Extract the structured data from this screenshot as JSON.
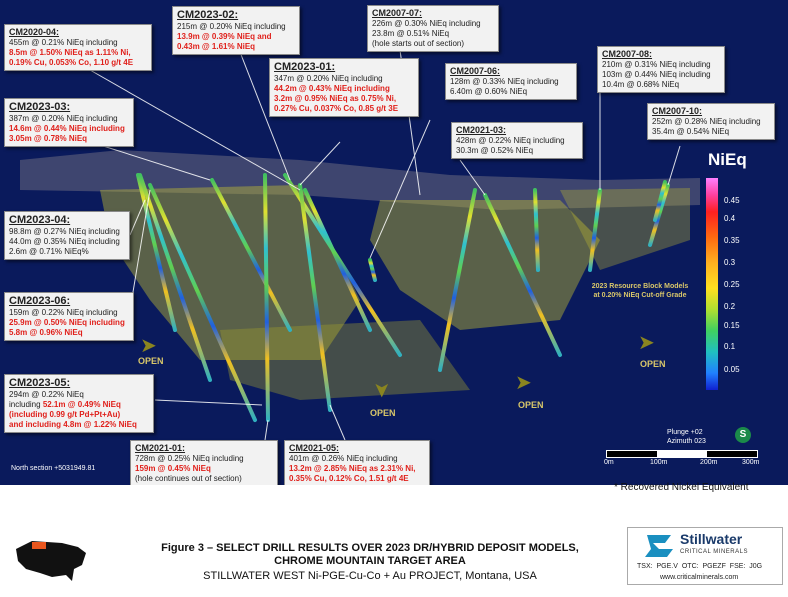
{
  "callouts": {
    "cm2020_04": {
      "title": "CM2020-04:",
      "lines": [
        "455m @ 0.21% NiEq including"
      ],
      "red": [
        "8.5m @ 1.50% NiEq as 1.11% Ni,",
        "0.19% Cu, 0.053% Co, 1.10 g/t 4E"
      ]
    },
    "cm2023_02": {
      "title": "CM2023-02:",
      "lines": [
        "215m @ 0.20% NiEq including"
      ],
      "red": [
        "13.9m @ 0.39% NiEq and",
        "0.43m @ 1.61% NiEq"
      ]
    },
    "cm2007_07": {
      "title": "CM2007-07:",
      "lines": [
        "226m @ 0.30% NiEq including",
        "23.8m @ 0.51% NiEq",
        "(hole starts out of section)"
      ]
    },
    "cm2023_01": {
      "title": "CM2023-01:",
      "lines": [
        "347m @ 0.20% NiEq including"
      ],
      "red": [
        "44.2m @ 0.43% NiEq including",
        "3.2m @ 0.95% NiEq as 0.75% Ni,",
        "0.27% Cu, 0.037% Co, 0.85 g/t 3E"
      ]
    },
    "cm2007_08": {
      "title": "CM2007-08:",
      "lines": [
        "210m @ 0.31% NiEq including",
        "103m @ 0.44% NiEq including",
        "10.4m @ 0.68% NiEq"
      ]
    },
    "cm2023_03": {
      "title": "CM2023-03:",
      "lines": [
        "387m @ 0.20% NiEq including"
      ],
      "red": [
        "14.6m @ 0.44% NiEq including",
        "3.05m @ 0.78% NiEq"
      ]
    },
    "cm2007_06": {
      "title": "CM2007-06:",
      "lines": [
        "128m @ 0.33% NiEq including",
        "6.40m @ 0.60% NiEq"
      ]
    },
    "cm2007_10": {
      "title": "CM2007-10:",
      "lines": [
        "252m @ 0.28% NiEq including",
        "35.4m @ 0.54% NiEq"
      ]
    },
    "cm2021_03": {
      "title": "CM2021-03:",
      "lines": [
        "428m @ 0.22% NiEq including",
        "30.3m @ 0.52% NiEq"
      ]
    },
    "cm2023_04": {
      "title": "CM2023-04:",
      "lines": [
        "98.8m @ 0.27% NiEq including",
        "44.0m @ 0.35% NiEq including",
        "2.6m @ 0.71% NiEq%"
      ]
    },
    "cm2023_06": {
      "title": "CM2023-06:",
      "lines": [
        "159m @ 0.22% NiEq including"
      ],
      "red": [
        "25.9m @ 0.50% NiEq including",
        "5.8m @ 0.96% NiEq"
      ]
    },
    "cm2023_05": {
      "title": "CM2023-05:",
      "lines": [
        "294m @ 0.22% NiEq"
      ],
      "mixed": "including ",
      "mixed_red": "52.1m @ 0.49% NiEq",
      "red": [
        "(including 0.99 g/t Pd+Pt+Au)",
        "and including 4.8m @ 1.22% NiEq"
      ]
    },
    "cm2021_01": {
      "title": "CM2021-01:",
      "lines": [
        "728m @ 0.25% NiEq including"
      ],
      "red": [
        "159m @ 0.45% NiEq"
      ],
      "tail": "(hole continues out of section)"
    },
    "cm2021_05": {
      "title": "CM2021-05:",
      "lines": [
        "401m @ 0.26% NiEq including"
      ],
      "red": [
        "13.2m @ 2.85% NiEq as 2.31% Ni,",
        "0.35% Cu, 0.12% Co, 1.51 g/t 4E"
      ]
    }
  },
  "legend": {
    "title": "NiEq",
    "labels": [
      "0.45",
      "0.4",
      "0.35",
      "0.3",
      "0.25",
      "0.2",
      "0.15",
      "0.1",
      "0.05"
    ]
  },
  "open_label": "OPEN",
  "block_models": [
    "2023 Resource Block Models",
    "at 0.20% NiEq Cut-off Grade"
  ],
  "north_section": "North section +5031949.81",
  "plunge": [
    "Plunge +02",
    "Azimuth 023"
  ],
  "compass": "S",
  "scale": {
    "labels": [
      "0m",
      "100m",
      "200m",
      "300m"
    ]
  },
  "footnote": "* Recovered Nickel Equivalent",
  "figure": {
    "title_1": "Figure 3  – SELECT DRILL RESULTS OVER 2023 DR/HYBRID DEPOSIT MODELS,",
    "title_2": "CHROME MOUNTAIN TARGET AREA",
    "subtitle": "STILLWATER WEST Ni-PGE-Cu-Co + Au PROJECT, Montana, USA"
  },
  "logo": {
    "name": "Stillwater",
    "sub": "CRITICAL MINERALS",
    "tickers": "TSX: PGE.V   OTC: PGEZF   FSE: J0G",
    "website": "www.criticalminerals.com"
  },
  "colors": {
    "background": "#0a1a5c",
    "model": "#bdb832",
    "accent_red": "#e0201b"
  }
}
